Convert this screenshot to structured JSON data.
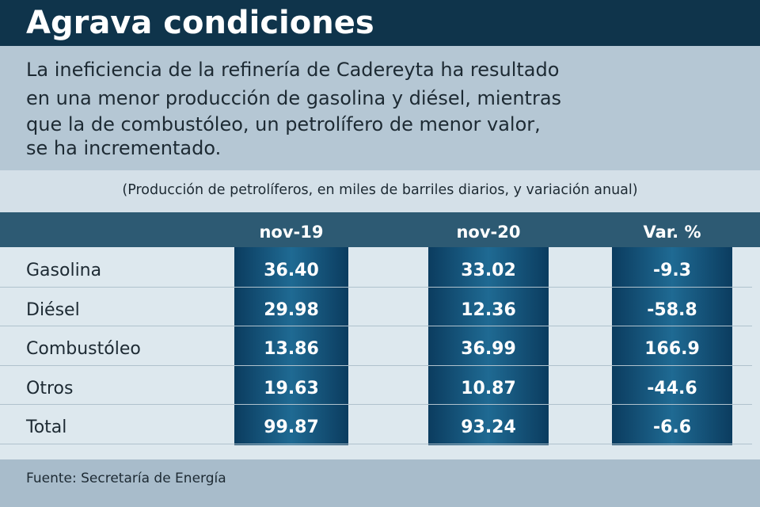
{
  "header": {
    "title": "Agrava condiciones"
  },
  "description": [
    "La ineficiencia de la refinería de Cadereyta ha resultado",
    "en una menor producción de gasolina y diésel, mientras",
    "que la de combustóleo, un petrolífero de menor valor,",
    "se ha incrementado."
  ],
  "subtitle": "(Producción de petrolíferos, en miles de barriles diarios, y variación anual)",
  "table": {
    "columns": [
      "nov-19",
      "nov-20",
      "Var. %"
    ],
    "rows": [
      [
        "Gasolina",
        "36.40",
        "33.02",
        "-9.3"
      ],
      [
        "Diésel",
        "29.98",
        "12.36",
        "-58.8"
      ],
      [
        "Combustóleo",
        "13.86",
        "36.99",
        "166.9"
      ],
      [
        "Otros",
        "19.63",
        "10.87",
        "-44.6"
      ],
      [
        "Total",
        "99.87",
        "93.24",
        "-6.6"
      ]
    ]
  },
  "source": "Fuente: Secretaría de Energía"
}
